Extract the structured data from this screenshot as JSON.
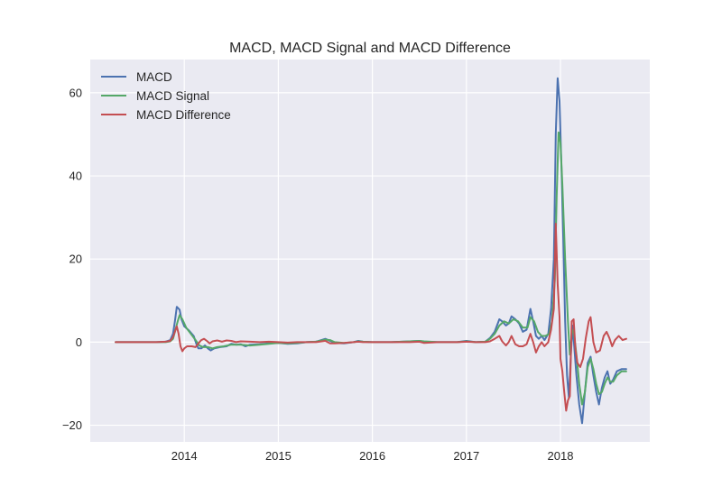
{
  "chart_data": {
    "type": "line",
    "title": "MACD, MACD Signal and MACD Difference",
    "xlabel": "",
    "ylabel": "",
    "xlim": [
      2013.0,
      2018.95
    ],
    "ylim": [
      -24,
      68
    ],
    "x_ticks": [
      {
        "value": 2014,
        "label": "2014"
      },
      {
        "value": 2015,
        "label": "2015"
      },
      {
        "value": 2016,
        "label": "2016"
      },
      {
        "value": 2017,
        "label": "2017"
      },
      {
        "value": 2018,
        "label": "2018"
      }
    ],
    "y_ticks": [
      {
        "value": 60,
        "label": "60"
      },
      {
        "value": 40,
        "label": "40"
      },
      {
        "value": 20,
        "label": "20"
      },
      {
        "value": 0,
        "label": "0"
      },
      {
        "value": -20,
        "label": "−20"
      }
    ],
    "grid": true,
    "legend_position": "top-left",
    "series": [
      {
        "name": "MACD",
        "color": "#4c72b0",
        "points": [
          [
            2013.27,
            0.0
          ],
          [
            2013.5,
            0.0
          ],
          [
            2013.7,
            0.0
          ],
          [
            2013.8,
            0.1
          ],
          [
            2013.85,
            0.5
          ],
          [
            2013.88,
            2.0
          ],
          [
            2013.9,
            5.0
          ],
          [
            2013.92,
            8.5
          ],
          [
            2013.95,
            7.8
          ],
          [
            2013.97,
            5.5
          ],
          [
            2014.0,
            3.8
          ],
          [
            2014.05,
            2.8
          ],
          [
            2014.1,
            1.5
          ],
          [
            2014.13,
            -0.5
          ],
          [
            2014.15,
            -1.5
          ],
          [
            2014.18,
            -1.5
          ],
          [
            2014.22,
            -0.8
          ],
          [
            2014.25,
            -1.5
          ],
          [
            2014.28,
            -2.0
          ],
          [
            2014.32,
            -1.5
          ],
          [
            2014.38,
            -1.2
          ],
          [
            2014.45,
            -1.0
          ],
          [
            2014.5,
            -0.4
          ],
          [
            2014.55,
            -0.6
          ],
          [
            2014.6,
            -0.5
          ],
          [
            2014.65,
            -1.0
          ],
          [
            2014.7,
            -0.6
          ],
          [
            2014.8,
            -0.5
          ],
          [
            2014.9,
            -0.3
          ],
          [
            2015.0,
            -0.2
          ],
          [
            2015.1,
            -0.4
          ],
          [
            2015.2,
            -0.3
          ],
          [
            2015.3,
            0.0
          ],
          [
            2015.4,
            0.1
          ],
          [
            2015.5,
            0.8
          ],
          [
            2015.55,
            0.3
          ],
          [
            2015.6,
            -0.2
          ],
          [
            2015.7,
            -0.3
          ],
          [
            2015.8,
            0.0
          ],
          [
            2015.85,
            0.3
          ],
          [
            2015.9,
            0.1
          ],
          [
            2016.0,
            0.0
          ],
          [
            2016.2,
            0.0
          ],
          [
            2016.4,
            0.2
          ],
          [
            2016.5,
            0.3
          ],
          [
            2016.55,
            0.1
          ],
          [
            2016.7,
            0.0
          ],
          [
            2016.9,
            0.0
          ],
          [
            2017.0,
            0.3
          ],
          [
            2017.1,
            0.0
          ],
          [
            2017.2,
            0.1
          ],
          [
            2017.25,
            1.0
          ],
          [
            2017.3,
            2.5
          ],
          [
            2017.35,
            5.5
          ],
          [
            2017.38,
            5.0
          ],
          [
            2017.42,
            4.0
          ],
          [
            2017.45,
            4.5
          ],
          [
            2017.48,
            6.2
          ],
          [
            2017.52,
            5.5
          ],
          [
            2017.56,
            4.5
          ],
          [
            2017.6,
            2.5
          ],
          [
            2017.64,
            3.0
          ],
          [
            2017.68,
            8.0
          ],
          [
            2017.71,
            5.0
          ],
          [
            2017.74,
            1.5
          ],
          [
            2017.77,
            0.8
          ],
          [
            2017.8,
            1.5
          ],
          [
            2017.83,
            0.5
          ],
          [
            2017.87,
            2.0
          ],
          [
            2017.9,
            8.0
          ],
          [
            2017.93,
            20.0
          ],
          [
            2017.95,
            50.0
          ],
          [
            2017.97,
            63.5
          ],
          [
            2017.99,
            58.0
          ],
          [
            2018.01,
            42.0
          ],
          [
            2018.03,
            25.0
          ],
          [
            2018.05,
            5.0
          ],
          [
            2018.07,
            -8.0
          ],
          [
            2018.09,
            -13.5
          ],
          [
            2018.11,
            -3.0
          ],
          [
            2018.13,
            4.0
          ],
          [
            2018.15,
            -2.0
          ],
          [
            2018.17,
            -8.0
          ],
          [
            2018.2,
            -15.0
          ],
          [
            2018.23,
            -19.5
          ],
          [
            2018.26,
            -12.0
          ],
          [
            2018.29,
            -5.0
          ],
          [
            2018.32,
            -3.5
          ],
          [
            2018.35,
            -8.0
          ],
          [
            2018.38,
            -12.0
          ],
          [
            2018.41,
            -15.0
          ],
          [
            2018.44,
            -11.0
          ],
          [
            2018.47,
            -8.5
          ],
          [
            2018.5,
            -7.0
          ],
          [
            2018.53,
            -10.0
          ],
          [
            2018.56,
            -9.0
          ],
          [
            2018.6,
            -7.0
          ],
          [
            2018.65,
            -6.5
          ],
          [
            2018.7,
            -6.5
          ]
        ]
      },
      {
        "name": "MACD Signal",
        "color": "#55a868",
        "points": [
          [
            2013.27,
            0.0
          ],
          [
            2013.5,
            0.0
          ],
          [
            2013.7,
            0.0
          ],
          [
            2013.8,
            0.0
          ],
          [
            2013.85,
            0.2
          ],
          [
            2013.88,
            0.8
          ],
          [
            2013.9,
            2.5
          ],
          [
            2013.93,
            5.0
          ],
          [
            2013.95,
            6.5
          ],
          [
            2013.98,
            5.5
          ],
          [
            2014.02,
            3.5
          ],
          [
            2014.07,
            2.0
          ],
          [
            2014.12,
            0.5
          ],
          [
            2014.16,
            -0.8
          ],
          [
            2014.2,
            -1.2
          ],
          [
            2014.25,
            -1.2
          ],
          [
            2014.3,
            -1.5
          ],
          [
            2014.35,
            -1.2
          ],
          [
            2014.42,
            -1.0
          ],
          [
            2014.5,
            -0.6
          ],
          [
            2014.6,
            -0.6
          ],
          [
            2014.7,
            -0.8
          ],
          [
            2014.8,
            -0.6
          ],
          [
            2014.9,
            -0.4
          ],
          [
            2015.0,
            -0.2
          ],
          [
            2015.1,
            -0.3
          ],
          [
            2015.2,
            -0.2
          ],
          [
            2015.3,
            0.0
          ],
          [
            2015.4,
            0.1
          ],
          [
            2015.5,
            0.6
          ],
          [
            2015.55,
            0.5
          ],
          [
            2015.6,
            0.0
          ],
          [
            2015.7,
            -0.2
          ],
          [
            2015.8,
            0.0
          ],
          [
            2015.85,
            0.2
          ],
          [
            2015.9,
            0.1
          ],
          [
            2016.0,
            0.0
          ],
          [
            2016.2,
            0.0
          ],
          [
            2016.4,
            0.2
          ],
          [
            2016.5,
            0.3
          ],
          [
            2016.55,
            0.2
          ],
          [
            2016.7,
            0.0
          ],
          [
            2016.9,
            0.0
          ],
          [
            2017.0,
            0.2
          ],
          [
            2017.1,
            0.0
          ],
          [
            2017.2,
            0.1
          ],
          [
            2017.25,
            0.8
          ],
          [
            2017.3,
            2.0
          ],
          [
            2017.35,
            4.0
          ],
          [
            2017.4,
            5.0
          ],
          [
            2017.45,
            4.5
          ],
          [
            2017.5,
            5.5
          ],
          [
            2017.55,
            5.0
          ],
          [
            2017.6,
            3.5
          ],
          [
            2017.65,
            3.5
          ],
          [
            2017.68,
            6.0
          ],
          [
            2017.72,
            5.0
          ],
          [
            2017.76,
            2.5
          ],
          [
            2017.8,
            1.5
          ],
          [
            2017.84,
            1.5
          ],
          [
            2017.88,
            2.0
          ],
          [
            2017.91,
            5.0
          ],
          [
            2017.94,
            15.0
          ],
          [
            2017.96,
            35.0
          ],
          [
            2017.98,
            50.5
          ],
          [
            2018.0,
            48.0
          ],
          [
            2018.02,
            38.0
          ],
          [
            2018.05,
            20.0
          ],
          [
            2018.08,
            5.0
          ],
          [
            2018.1,
            -3.0
          ],
          [
            2018.12,
            2.0
          ],
          [
            2018.14,
            3.0
          ],
          [
            2018.17,
            -3.0
          ],
          [
            2018.2,
            -10.0
          ],
          [
            2018.23,
            -15.0
          ],
          [
            2018.26,
            -12.0
          ],
          [
            2018.29,
            -6.0
          ],
          [
            2018.32,
            -4.0
          ],
          [
            2018.35,
            -6.5
          ],
          [
            2018.38,
            -10.0
          ],
          [
            2018.41,
            -12.5
          ],
          [
            2018.44,
            -12.0
          ],
          [
            2018.47,
            -10.0
          ],
          [
            2018.5,
            -8.5
          ],
          [
            2018.53,
            -9.5
          ],
          [
            2018.56,
            -9.5
          ],
          [
            2018.6,
            -8.0
          ],
          [
            2018.65,
            -7.0
          ],
          [
            2018.7,
            -7.0
          ]
        ]
      },
      {
        "name": "MACD Difference",
        "color": "#c44e52",
        "points": [
          [
            2013.27,
            0.0
          ],
          [
            2013.5,
            0.0
          ],
          [
            2013.7,
            0.0
          ],
          [
            2013.8,
            0.1
          ],
          [
            2013.85,
            0.3
          ],
          [
            2013.88,
            1.2
          ],
          [
            2013.9,
            2.5
          ],
          [
            2013.92,
            3.8
          ],
          [
            2013.94,
            2.0
          ],
          [
            2013.96,
            -1.0
          ],
          [
            2013.98,
            -2.2
          ],
          [
            2014.0,
            -1.5
          ],
          [
            2014.03,
            -1.0
          ],
          [
            2014.08,
            -1.0
          ],
          [
            2014.12,
            -1.2
          ],
          [
            2014.15,
            -0.3
          ],
          [
            2014.18,
            0.5
          ],
          [
            2014.21,
            0.8
          ],
          [
            2014.24,
            0.3
          ],
          [
            2014.27,
            -0.3
          ],
          [
            2014.3,
            0.2
          ],
          [
            2014.35,
            0.4
          ],
          [
            2014.4,
            0.1
          ],
          [
            2014.45,
            0.4
          ],
          [
            2014.5,
            0.3
          ],
          [
            2014.55,
            0.0
          ],
          [
            2014.6,
            0.2
          ],
          [
            2014.7,
            0.1
          ],
          [
            2014.8,
            0.0
          ],
          [
            2014.9,
            0.1
          ],
          [
            2015.0,
            0.0
          ],
          [
            2015.1,
            -0.1
          ],
          [
            2015.2,
            0.0
          ],
          [
            2015.3,
            0.0
          ],
          [
            2015.4,
            0.0
          ],
          [
            2015.5,
            0.3
          ],
          [
            2015.55,
            -0.3
          ],
          [
            2015.6,
            -0.3
          ],
          [
            2015.7,
            -0.2
          ],
          [
            2015.8,
            0.0
          ],
          [
            2015.85,
            0.1
          ],
          [
            2015.9,
            0.0
          ],
          [
            2016.0,
            0.0
          ],
          [
            2016.2,
            0.0
          ],
          [
            2016.4,
            0.0
          ],
          [
            2016.5,
            0.1
          ],
          [
            2016.55,
            -0.2
          ],
          [
            2016.7,
            0.0
          ],
          [
            2016.9,
            0.0
          ],
          [
            2017.0,
            0.1
          ],
          [
            2017.1,
            0.0
          ],
          [
            2017.2,
            0.0
          ],
          [
            2017.25,
            0.2
          ],
          [
            2017.3,
            0.8
          ],
          [
            2017.35,
            1.5
          ],
          [
            2017.38,
            0.2
          ],
          [
            2017.42,
            -0.8
          ],
          [
            2017.45,
            0.0
          ],
          [
            2017.48,
            1.5
          ],
          [
            2017.52,
            -0.5
          ],
          [
            2017.56,
            -1.0
          ],
          [
            2017.6,
            -1.0
          ],
          [
            2017.64,
            -0.5
          ],
          [
            2017.68,
            2.0
          ],
          [
            2017.71,
            0.0
          ],
          [
            2017.74,
            -2.5
          ],
          [
            2017.77,
            -1.0
          ],
          [
            2017.8,
            0.0
          ],
          [
            2017.83,
            -1.0
          ],
          [
            2017.87,
            0.0
          ],
          [
            2017.9,
            3.0
          ],
          [
            2017.93,
            8.0
          ],
          [
            2017.95,
            28.5
          ],
          [
            2017.97,
            14.0
          ],
          [
            2017.99,
            6.0
          ],
          [
            2018.0,
            -4.0
          ],
          [
            2018.02,
            -7.0
          ],
          [
            2018.04,
            -12.0
          ],
          [
            2018.06,
            -16.5
          ],
          [
            2018.08,
            -14.0
          ],
          [
            2018.1,
            -13.0
          ],
          [
            2018.12,
            5.0
          ],
          [
            2018.14,
            5.5
          ],
          [
            2018.16,
            -2.0
          ],
          [
            2018.18,
            -5.0
          ],
          [
            2018.21,
            -6.0
          ],
          [
            2018.24,
            -4.0
          ],
          [
            2018.27,
            1.0
          ],
          [
            2018.3,
            5.0
          ],
          [
            2018.32,
            6.0
          ],
          [
            2018.35,
            0.0
          ],
          [
            2018.38,
            -2.5
          ],
          [
            2018.42,
            -2.0
          ],
          [
            2018.46,
            1.5
          ],
          [
            2018.49,
            2.5
          ],
          [
            2018.52,
            1.0
          ],
          [
            2018.55,
            -1.0
          ],
          [
            2018.58,
            0.5
          ],
          [
            2018.62,
            1.5
          ],
          [
            2018.66,
            0.5
          ],
          [
            2018.7,
            0.8
          ]
        ]
      }
    ]
  }
}
